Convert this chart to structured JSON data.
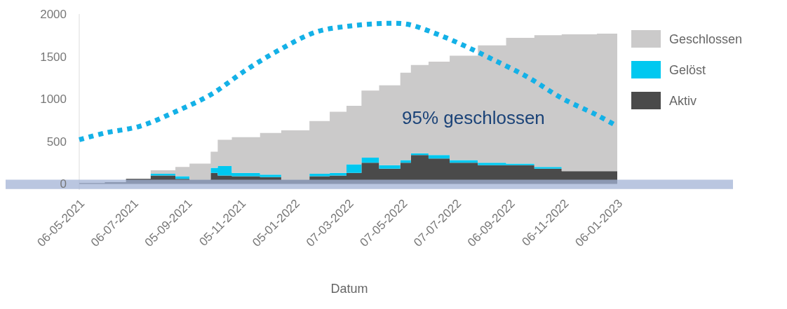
{
  "chart_data": {
    "type": "area",
    "stacked": true,
    "xlabel": "Datum",
    "x": [
      "2021-05-06",
      "2021-06-04",
      "2021-06-28",
      "2021-07-26",
      "2021-08-23",
      "2021-09-08",
      "2021-10-02",
      "2021-10-10",
      "2021-10-26",
      "2021-11-27",
      "2021-12-21",
      "2022-01-22",
      "2022-02-14",
      "2022-03-05",
      "2022-03-22",
      "2022-04-11",
      "2022-05-05",
      "2022-05-17",
      "2022-06-06",
      "2022-06-30",
      "2022-08-01",
      "2022-09-02",
      "2022-10-04",
      "2022-11-04",
      "2022-12-14",
      "2023-01-06"
    ],
    "series": [
      {
        "name": "Aktiv",
        "color": "#4a4a4a",
        "values": [
          10,
          20,
          60,
          100,
          60,
          50,
          130,
          100,
          90,
          80,
          50,
          90,
          100,
          130,
          250,
          180,
          250,
          340,
          300,
          250,
          220,
          220,
          180,
          150,
          150,
          150
        ]
      },
      {
        "name": "Gelöst",
        "color": "#00c8f0",
        "values": [
          0,
          0,
          0,
          20,
          30,
          0,
          60,
          110,
          40,
          30,
          0,
          30,
          30,
          100,
          60,
          40,
          30,
          20,
          40,
          30,
          30,
          20,
          20,
          0,
          0,
          0
        ]
      },
      {
        "name": "Geschlossen",
        "color": "#cbcaca",
        "values": [
          0,
          0,
          0,
          40,
          110,
          190,
          190,
          310,
          420,
          490,
          580,
          620,
          720,
          690,
          790,
          940,
          1030,
          1040,
          1100,
          1230,
          1380,
          1480,
          1550,
          1610,
          1620,
          1620
        ]
      },
      {
        "type": "line",
        "color": "#14b1e7",
        "line_style": "dotted",
        "x": [
          "2021-05-06",
          "2021-06-04",
          "2021-07-14",
          "2021-08-23",
          "2021-10-02",
          "2021-11-11",
          "2021-12-21",
          "2022-01-30",
          "2022-03-10",
          "2022-04-19",
          "2022-05-13",
          "2022-06-14",
          "2022-07-16",
          "2022-08-17",
          "2022-09-26",
          "2022-11-04",
          "2022-12-14",
          "2023-01-06"
        ],
        "values": [
          520,
          600,
          680,
          850,
          1050,
          1340,
          1590,
          1790,
          1860,
          1890,
          1880,
          1770,
          1630,
          1470,
          1260,
          1010,
          810,
          680
        ]
      }
    ],
    "xlim": [
      "2021-05-06",
      "2023-01-06"
    ],
    "xticks": [
      {
        "value": "2021-05-06",
        "label": "06-05-2021"
      },
      {
        "value": "2021-07-06",
        "label": "06-07-2021"
      },
      {
        "value": "2021-09-05",
        "label": "05-09-2021"
      },
      {
        "value": "2021-11-05",
        "label": "05-11-2021"
      },
      {
        "value": "2022-01-05",
        "label": "05-01-2022"
      },
      {
        "value": "2022-03-07",
        "label": "07-03-2022"
      },
      {
        "value": "2022-05-07",
        "label": "07-05-2022"
      },
      {
        "value": "2022-07-07",
        "label": "07-07-2022"
      },
      {
        "value": "2022-09-06",
        "label": "06-09-2022"
      },
      {
        "value": "2022-11-06",
        "label": "06-11-2022"
      },
      {
        "value": "2023-01-06",
        "label": "06-01-2023"
      }
    ],
    "ylim": [
      -70,
      2000
    ],
    "yticks": [
      0,
      500,
      1000,
      1500,
      2000
    ],
    "bands": [
      {
        "axis": "y",
        "from": -60,
        "to": 50,
        "color": "#a3b3d6"
      }
    ],
    "annotations": [
      "95% geschlossen"
    ],
    "legend": "right"
  }
}
